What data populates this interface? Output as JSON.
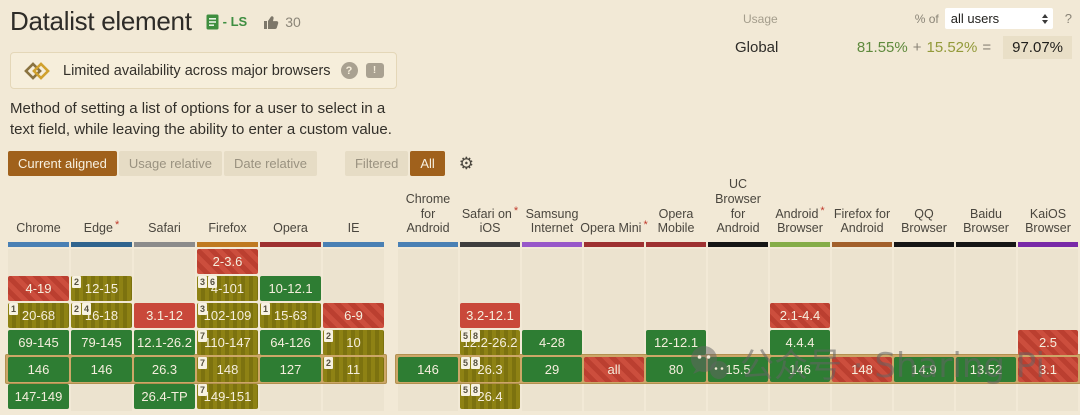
{
  "header": {
    "title": "Datalist element",
    "spec_tag": "- LS",
    "votes": "30"
  },
  "usage": {
    "label": "Usage",
    "percent_of_label": "% of",
    "select_value": "all users",
    "help": "?",
    "region": "Global",
    "supported_pct": "81.55%",
    "plus": "+",
    "partial_pct": "15.52%",
    "equals": "=",
    "total_pct": "97.07%"
  },
  "alert": {
    "text": "Limited availability across major browsers",
    "help": "?",
    "flag": "!"
  },
  "description": "Method of setting a list of options for a user to select in a text field, while leaving the ability to enter a custom value.",
  "controls": {
    "view_modes": [
      {
        "label": "Current aligned",
        "active": true
      },
      {
        "label": "Usage relative",
        "active": false
      },
      {
        "label": "Date relative",
        "active": false
      }
    ],
    "filters": [
      {
        "label": "Filtered",
        "active": false
      },
      {
        "label": "All",
        "active": true
      }
    ],
    "gear_icon": "⚙"
  },
  "colors": {
    "accent_brown": "#a0611c",
    "support_green": "#2e7d33",
    "partial_olive": "#8a7f14",
    "unsupported_red": "#c9483a",
    "current_row_highlight": "#cda768"
  },
  "support": {
    "left": [
      {
        "id": "chrome",
        "name_lines": [
          "Chrome"
        ],
        "asterisk_line": null,
        "bar": "#4a80b4",
        "cells": [
          null,
          {
            "t": "4-19",
            "c": "red-striped"
          },
          {
            "t": "20-68",
            "c": "olive",
            "n": "1"
          },
          {
            "t": "69-145",
            "c": "green"
          },
          {
            "t": "146",
            "c": "green"
          },
          {
            "t": "147-149",
            "c": "green"
          }
        ]
      },
      {
        "id": "edge",
        "name_lines": [
          "Edge"
        ],
        "asterisk_line": 0,
        "bar": "#30648e",
        "cells": [
          null,
          {
            "t": "12-15",
            "c": "olive",
            "n": "2"
          },
          {
            "t": "16-18",
            "c": "olive",
            "n": "2 4"
          },
          {
            "t": "79-145",
            "c": "green"
          },
          {
            "t": "146",
            "c": "green"
          },
          null
        ]
      },
      {
        "id": "safari",
        "name_lines": [
          "Safari"
        ],
        "asterisk_line": null,
        "bar": "#8c8c8c",
        "cells": [
          null,
          null,
          {
            "t": "3.1-12",
            "c": "red"
          },
          {
            "t": "12.1-26.2",
            "c": "green"
          },
          {
            "t": "26.3",
            "c": "green"
          },
          {
            "t": "26.4-TP",
            "c": "green"
          }
        ]
      },
      {
        "id": "firefox",
        "name_lines": [
          "Firefox"
        ],
        "asterisk_line": null,
        "bar": "#bf7a21",
        "cells": [
          {
            "t": "2-3.6",
            "c": "red-striped"
          },
          {
            "t": "4-101",
            "c": "olive",
            "n": "3 6"
          },
          {
            "t": "102-109",
            "c": "olive",
            "n": "3"
          },
          {
            "t": "110-147",
            "c": "olive",
            "n": "7"
          },
          {
            "t": "148",
            "c": "olive",
            "n": "7"
          },
          {
            "t": "149-151",
            "c": "olive",
            "n": "7"
          }
        ]
      },
      {
        "id": "opera",
        "name_lines": [
          "Opera"
        ],
        "asterisk_line": null,
        "bar": "#9e3131",
        "cells": [
          null,
          {
            "t": "10-12.1",
            "c": "green"
          },
          {
            "t": "15-63",
            "c": "olive",
            "n": "1"
          },
          {
            "t": "64-126",
            "c": "green"
          },
          {
            "t": "127",
            "c": "green"
          },
          null
        ]
      },
      {
        "id": "ie",
        "name_lines": [
          "IE"
        ],
        "asterisk_line": null,
        "bar": "#4a80b4",
        "cells": [
          null,
          null,
          {
            "t": "6-9",
            "c": "red-striped"
          },
          {
            "t": "10",
            "c": "olive",
            "n": "2"
          },
          {
            "t": "11",
            "c": "olive",
            "n": "2"
          },
          null
        ]
      }
    ],
    "right": [
      {
        "id": "chrome-android",
        "name_lines": [
          "Chrome",
          "for",
          "Android"
        ],
        "asterisk_line": null,
        "bar": "#4a80b4",
        "cells": [
          null,
          null,
          null,
          null,
          {
            "t": "146",
            "c": "green"
          },
          null
        ]
      },
      {
        "id": "safari-ios",
        "name_lines": [
          "Safari on",
          "iOS"
        ],
        "asterisk_line": 0,
        "bar": "#3f3f3f",
        "cells": [
          null,
          null,
          {
            "t": "3.2-12.1",
            "c": "red"
          },
          {
            "t": "12.2-26.2",
            "c": "olive",
            "n": "5 8"
          },
          {
            "t": "26.3",
            "c": "olive",
            "n": "5 8"
          },
          {
            "t": "26.4",
            "c": "olive",
            "n": "5 8"
          }
        ]
      },
      {
        "id": "samsung-internet",
        "name_lines": [
          "Samsung",
          "Internet"
        ],
        "asterisk_line": null,
        "bar": "#9857c9",
        "cells": [
          null,
          null,
          null,
          {
            "t": "4-28",
            "c": "green"
          },
          {
            "t": "29",
            "c": "green"
          },
          null
        ]
      },
      {
        "id": "opera-mini",
        "name_lines": [
          "Opera Mini"
        ],
        "asterisk_line": 0,
        "bar": "#9e3131",
        "cells": [
          null,
          null,
          null,
          null,
          {
            "t": "all",
            "c": "red-striped"
          },
          null
        ]
      },
      {
        "id": "opera-mobile",
        "name_lines": [
          "Opera",
          "Mobile"
        ],
        "asterisk_line": null,
        "bar": "#9e3131",
        "cells": [
          null,
          null,
          null,
          {
            "t": "12-12.1",
            "c": "green"
          },
          {
            "t": "80",
            "c": "green"
          },
          null
        ]
      },
      {
        "id": "uc-browser",
        "name_lines": [
          "UC",
          "Browser",
          "for",
          "Android"
        ],
        "asterisk_line": null,
        "bar": "#161616",
        "cells": [
          null,
          null,
          null,
          null,
          {
            "t": "15.5",
            "c": "green"
          },
          null
        ]
      },
      {
        "id": "android-browser",
        "name_lines": [
          "Android",
          "Browser"
        ],
        "asterisk_line": 0,
        "bar": "#85ad48",
        "cells": [
          null,
          null,
          {
            "t": "2.1-4.4",
            "c": "red-striped"
          },
          {
            "t": "4.4.4",
            "c": "green"
          },
          {
            "t": "146",
            "c": "green"
          },
          null
        ]
      },
      {
        "id": "firefox-android",
        "name_lines": [
          "Firefox for",
          "Android"
        ],
        "asterisk_line": null,
        "bar": "#a3602b",
        "cells": [
          null,
          null,
          null,
          null,
          {
            "t": "148",
            "c": "red-striped"
          },
          null
        ]
      },
      {
        "id": "qq-browser",
        "name_lines": [
          "QQ",
          "Browser"
        ],
        "asterisk_line": null,
        "bar": "#161616",
        "cells": [
          null,
          null,
          null,
          null,
          {
            "t": "14.9",
            "c": "green"
          },
          null
        ]
      },
      {
        "id": "baidu-browser",
        "name_lines": [
          "Baidu",
          "Browser"
        ],
        "asterisk_line": null,
        "bar": "#161616",
        "cells": [
          null,
          null,
          null,
          null,
          {
            "t": "13.52",
            "c": "green"
          },
          null
        ]
      },
      {
        "id": "kaios-browser",
        "name_lines": [
          "KaiOS",
          "Browser"
        ],
        "asterisk_line": null,
        "bar": "#7929a8",
        "cells": [
          null,
          null,
          null,
          {
            "t": "2.5",
            "c": "red-striped"
          },
          {
            "t": "3.1",
            "c": "red-striped"
          },
          null
        ]
      }
    ]
  },
  "watermark": {
    "text": "公众号 · Sharing Pi"
  }
}
